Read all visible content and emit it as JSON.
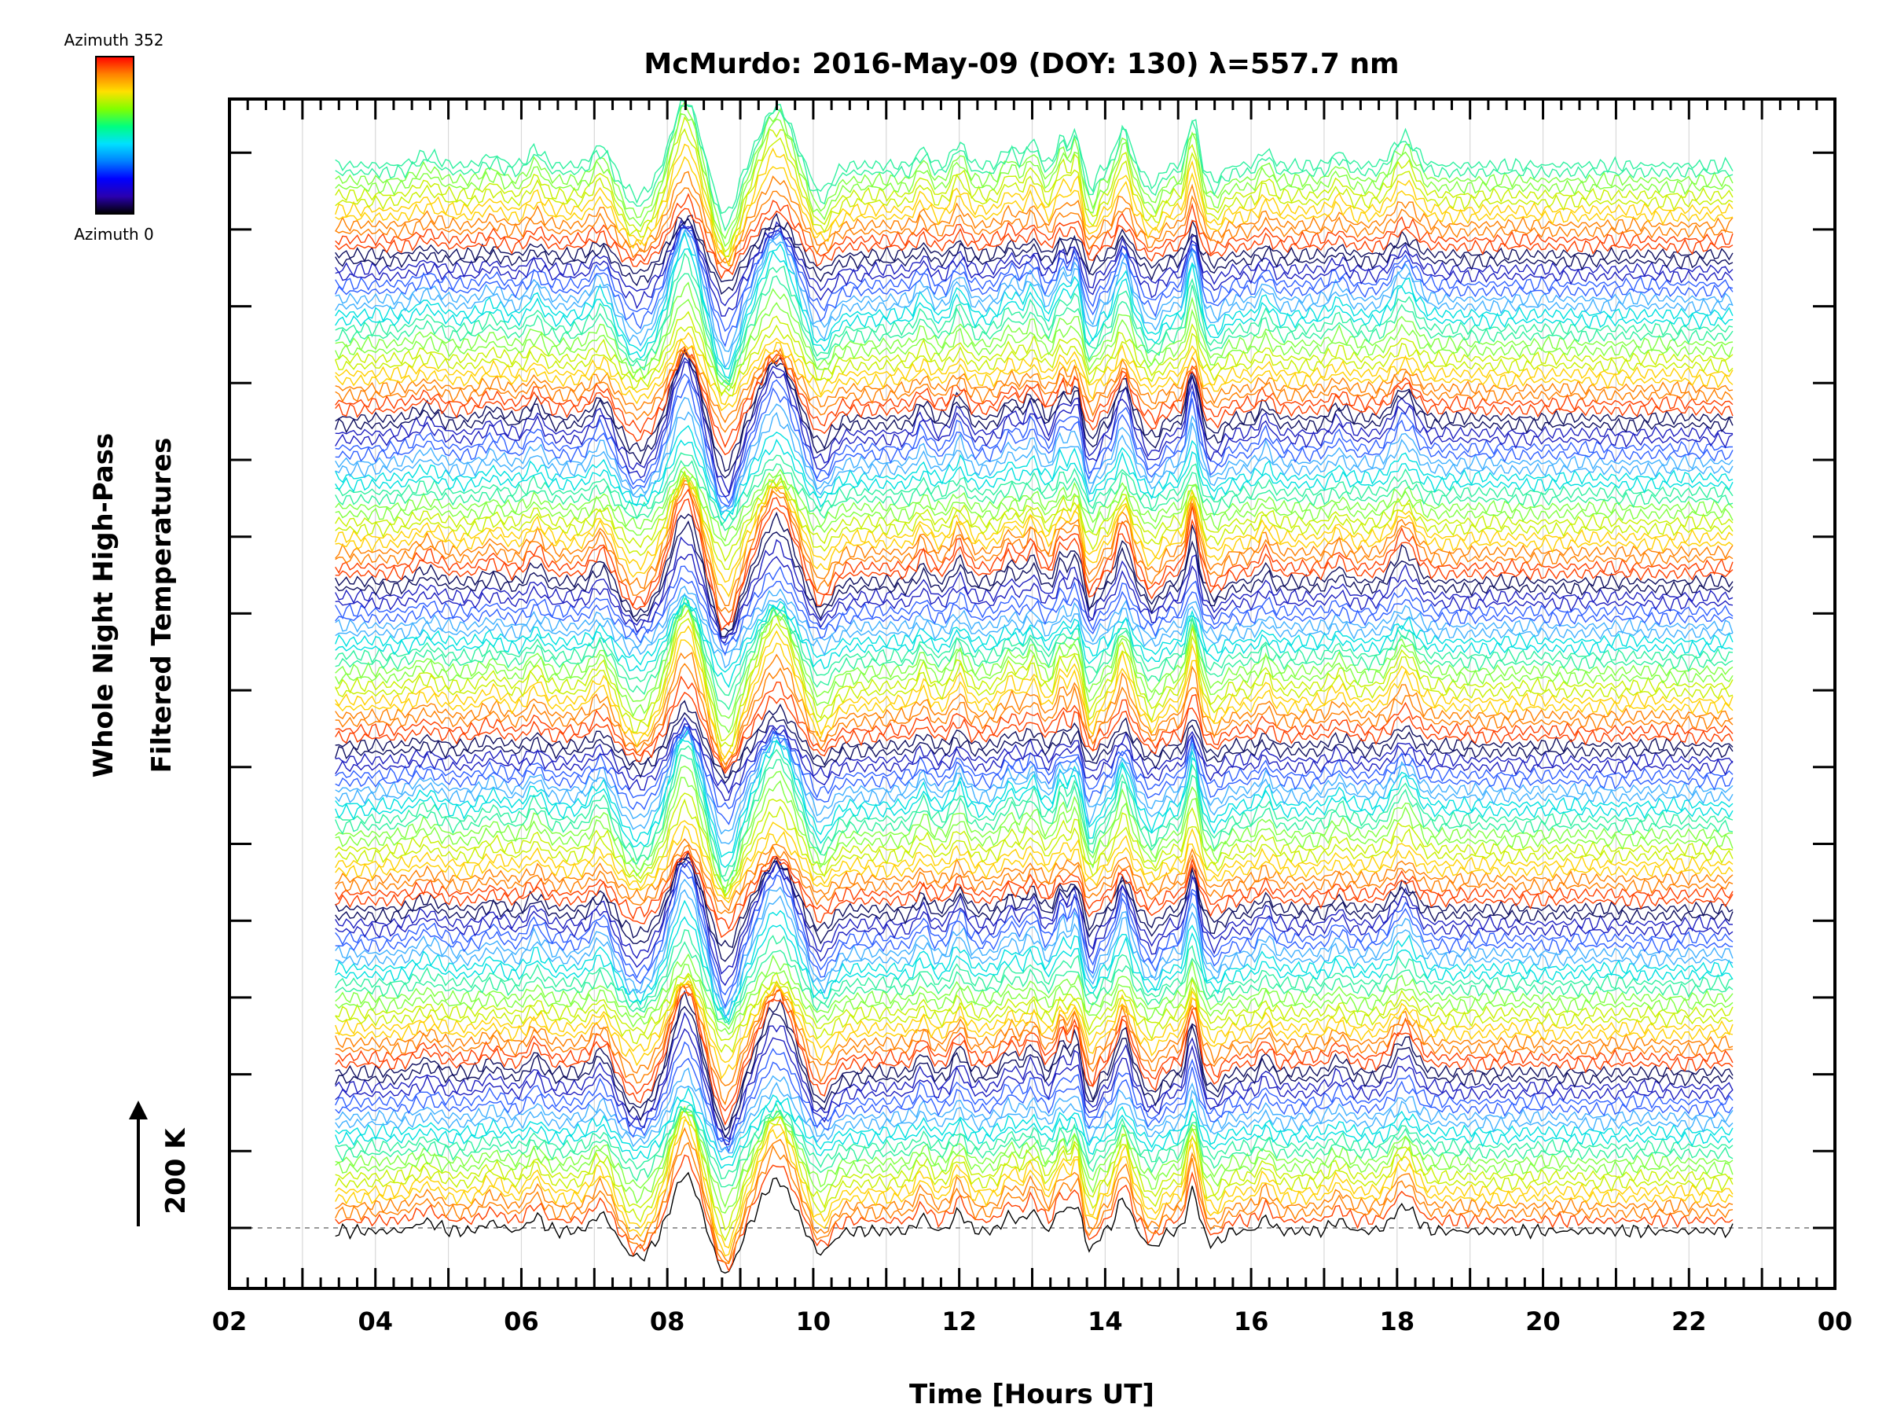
{
  "chart_data": {
    "type": "line",
    "title": "McMurdo: 2016-May-09 (DOY: 130) λ=557.7 nm",
    "xlabel": "Time [Hours UT]",
    "ylabel_line1": "Whole Night High-Pass",
    "ylabel_line2": "Filtered Temperatures",
    "x_tick_labels": [
      "02",
      "04",
      "06",
      "08",
      "10",
      "12",
      "14",
      "16",
      "18",
      "20",
      "22",
      "00"
    ],
    "xlim": [
      2,
      24
    ],
    "x_data_range": [
      3.45,
      22.6
    ],
    "scale_bar_label": "200 K",
    "scale_bar_value_k": 200,
    "n_traces": 144,
    "azimuth_min": 0,
    "azimuth_max": 352,
    "legend_top_label": "Azimuth 352",
    "legend_bottom_label": "Azimuth 0",
    "colormap": [
      "#000000",
      "#2a00b0",
      "#0000ff",
      "#0080ff",
      "#00e0ff",
      "#00ff80",
      "#80ff00",
      "#ffe000",
      "#ff8000",
      "#ff0000"
    ],
    "colorband_colors": [
      "#ff4000",
      "#ff8000",
      "#ffd000",
      "#c8f000",
      "#80ff40",
      "#30f0a0",
      "#00e0e0",
      "#40b0ff",
      "#3060ff",
      "#2020c0",
      "#101060"
    ],
    "common_features": {
      "peak_hours": [
        4.7,
        6.2,
        7.1,
        8.25,
        9.5,
        12.0,
        13.0,
        13.6,
        14.25,
        15.2,
        18.1
      ],
      "trough_hours": [
        7.6,
        8.8,
        10.1,
        13.8
      ]
    }
  }
}
